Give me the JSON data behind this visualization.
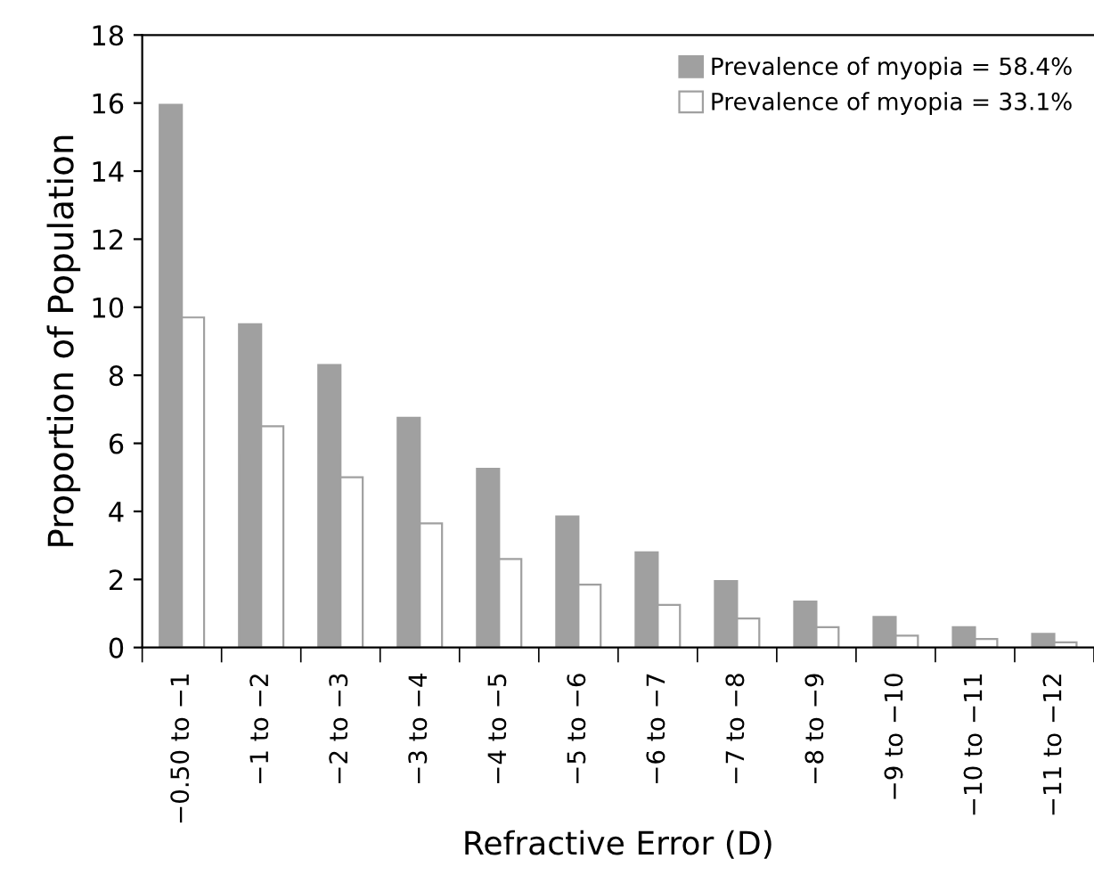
{
  "chart_data": {
    "type": "bar",
    "xlabel": "Refractive Error (D)",
    "ylabel": "Proportion of Population",
    "categories": [
      "−0.50 to −1",
      "−1 to −2",
      "−2 to −3",
      "−3 to −4",
      "−4 to −5",
      "−5 to −6",
      "−6 to −7",
      "−7 to −8",
      "−8 to −9",
      "−9 to −10",
      "−10 to −11",
      "−11 to −12"
    ],
    "series": [
      {
        "name": "Prevalence of myopia = 58.4%",
        "color": "#a0a0a0",
        "values": [
          15.95,
          9.5,
          8.3,
          6.75,
          5.25,
          3.85,
          2.8,
          1.95,
          1.35,
          0.9,
          0.6,
          0.4
        ]
      },
      {
        "name": "Prevalence of myopia = 33.1%",
        "color": "#ffffff",
        "values": [
          9.7,
          6.5,
          5.0,
          3.65,
          2.6,
          1.85,
          1.25,
          0.85,
          0.6,
          0.35,
          0.25,
          0.15
        ]
      }
    ],
    "ylim": [
      0,
      18
    ],
    "yticks": [
      0,
      2,
      4,
      6,
      8,
      10,
      12,
      14,
      16,
      18
    ],
    "grid": false,
    "legend": "top right"
  }
}
